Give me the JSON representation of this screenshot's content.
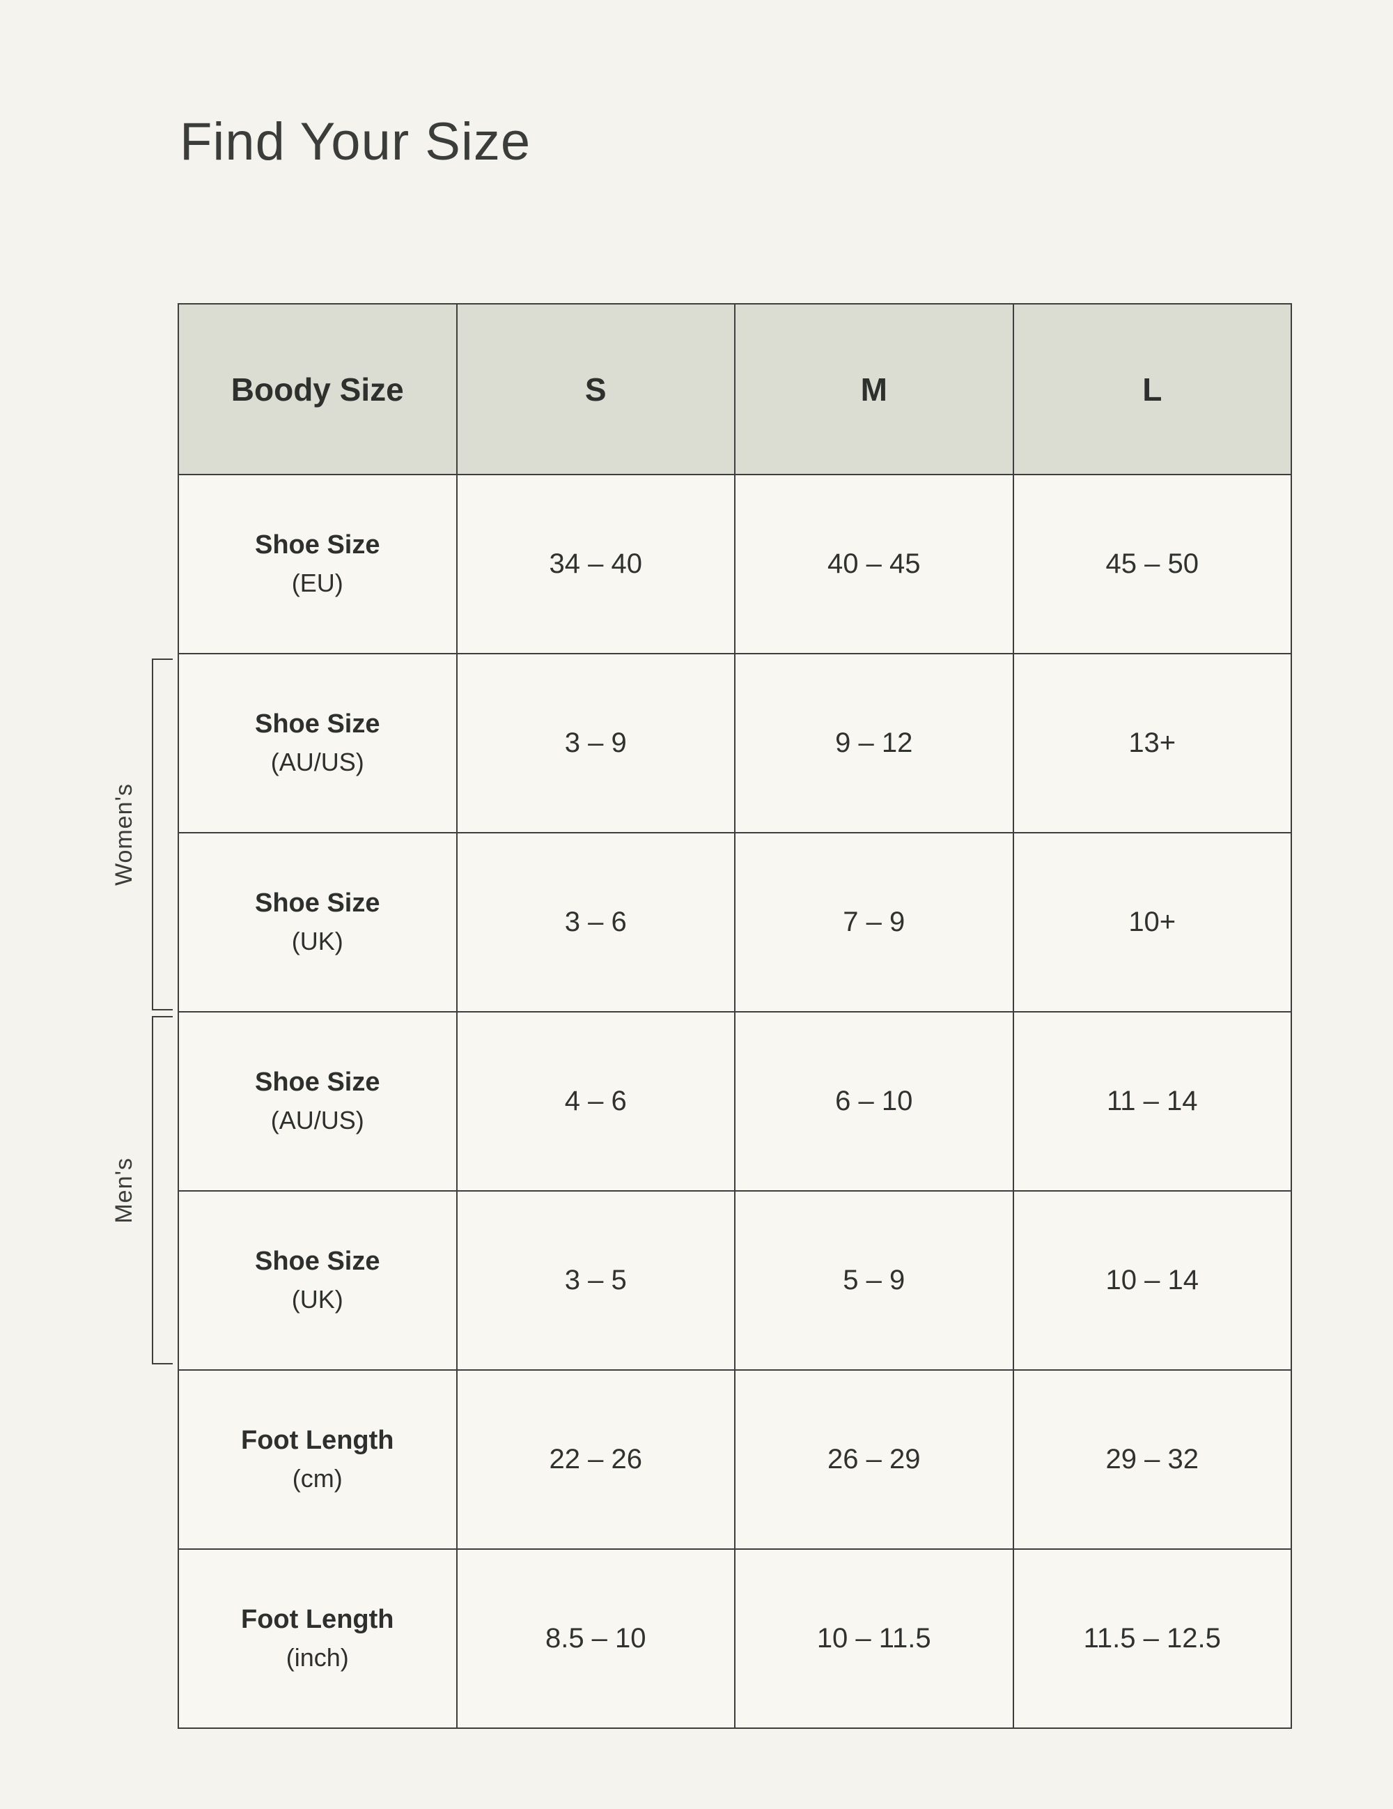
{
  "chart_data": {
    "type": "table",
    "title": "Find Your Size",
    "columns": [
      "Boody Size",
      "S",
      "M",
      "L"
    ],
    "rows": [
      {
        "label": "Shoe Size",
        "unit": "(EU)",
        "group": "",
        "values": [
          "34 – 40",
          "40 – 45",
          "45 – 50"
        ]
      },
      {
        "label": "Shoe Size",
        "unit": "(AU/US)",
        "group": "Women's",
        "values": [
          "3 – 9",
          "9 – 12",
          "13+"
        ]
      },
      {
        "label": "Shoe Size",
        "unit": "(UK)",
        "group": "Women's",
        "values": [
          "3 – 6",
          "7 – 9",
          "10+"
        ]
      },
      {
        "label": "Shoe Size",
        "unit": "(AU/US)",
        "group": "Men's",
        "values": [
          "4 – 6",
          "6 – 10",
          "11 – 14"
        ]
      },
      {
        "label": "Shoe Size",
        "unit": "(UK)",
        "group": "Men's",
        "values": [
          "3 – 5",
          "5 – 9",
          "10 – 14"
        ]
      },
      {
        "label": "Foot Length",
        "unit": "(cm)",
        "group": "",
        "values": [
          "22 – 26",
          "26 – 29",
          "29 – 32"
        ]
      },
      {
        "label": "Foot Length",
        "unit": "(inch)",
        "group": "",
        "values": [
          "8.5 – 10",
          "10 – 11.5",
          "11.5 – 12.5"
        ]
      }
    ],
    "group_labels": {
      "womens": "Women's",
      "mens": "Men's"
    },
    "legend_position": "none",
    "grid": true
  },
  "colors": {
    "page_background": "#F4F3EE",
    "header_background": "#DBDCD2",
    "cell_background": "#F8F7F2",
    "border": "#3E3E3E",
    "text": "#30322F"
  }
}
